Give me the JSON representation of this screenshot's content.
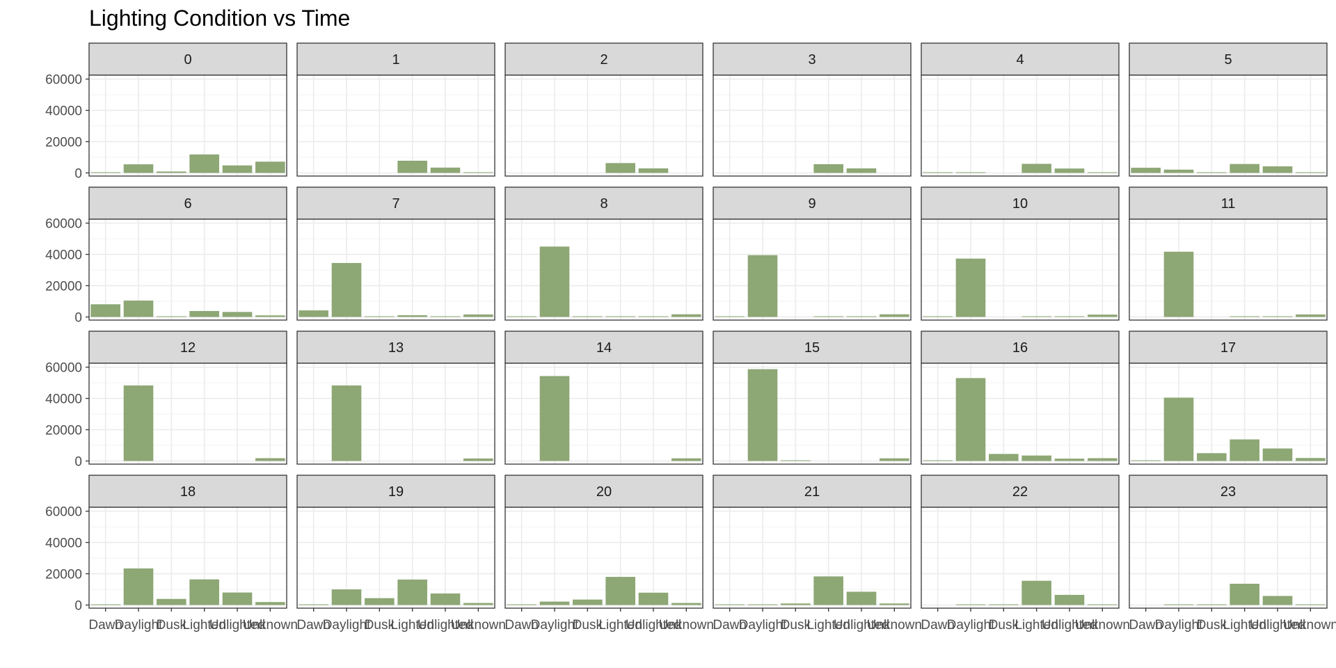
{
  "chart_data": {
    "type": "bar",
    "title": "Lighting Condition vs Time",
    "xlabel": "",
    "ylabel": "",
    "categories": [
      "Dawn",
      "Daylight",
      "Dusk",
      "Lighted",
      "Unlighted",
      "Unknown"
    ],
    "y_ticks": [
      "0",
      "20000",
      "40000",
      "60000"
    ],
    "ylim": [
      -2000,
      62500
    ],
    "grid": true,
    "bar_color": "#8da775",
    "facets": [
      {
        "label": "0",
        "values": [
          200,
          5500,
          900,
          11800,
          4800,
          7200
        ]
      },
      {
        "label": "1",
        "values": [
          0,
          0,
          0,
          7800,
          3400,
          300
        ]
      },
      {
        "label": "2",
        "values": [
          0,
          0,
          0,
          6300,
          2900,
          0
        ]
      },
      {
        "label": "3",
        "values": [
          0,
          0,
          0,
          5600,
          2900,
          0
        ]
      },
      {
        "label": "4",
        "values": [
          200,
          300,
          0,
          5800,
          2800,
          300
        ]
      },
      {
        "label": "5",
        "values": [
          3300,
          2100,
          400,
          5700,
          4200,
          400
        ]
      },
      {
        "label": "6",
        "values": [
          8100,
          10500,
          300,
          3800,
          3200,
          1000
        ]
      },
      {
        "label": "7",
        "values": [
          4200,
          34500,
          300,
          1100,
          400,
          1600
        ]
      },
      {
        "label": "8",
        "values": [
          200,
          45000,
          300,
          300,
          300,
          1700
        ]
      },
      {
        "label": "9",
        "values": [
          200,
          39500,
          0,
          300,
          300,
          1700
        ]
      },
      {
        "label": "10",
        "values": [
          200,
          37300,
          0,
          300,
          300,
          1500
        ]
      },
      {
        "label": "11",
        "values": [
          0,
          41700,
          0,
          300,
          300,
          1600
        ]
      },
      {
        "label": "12",
        "values": [
          0,
          48300,
          0,
          0,
          0,
          1800
        ]
      },
      {
        "label": "13",
        "values": [
          0,
          48300,
          0,
          0,
          0,
          1600
        ]
      },
      {
        "label": "14",
        "values": [
          0,
          54300,
          0,
          0,
          0,
          1700
        ]
      },
      {
        "label": "15",
        "values": [
          0,
          58700,
          300,
          0,
          0,
          1700
        ]
      },
      {
        "label": "16",
        "values": [
          400,
          53000,
          4500,
          3500,
          1500,
          1800
        ]
      },
      {
        "label": "17",
        "values": [
          400,
          40500,
          5000,
          13800,
          8000,
          1900
        ]
      },
      {
        "label": "18",
        "values": [
          400,
          23400,
          3900,
          16400,
          8000,
          1900
        ]
      },
      {
        "label": "19",
        "values": [
          400,
          10000,
          4400,
          16300,
          7400,
          1300
        ]
      },
      {
        "label": "20",
        "values": [
          400,
          2200,
          3500,
          18000,
          7900,
          1300
        ]
      },
      {
        "label": "21",
        "values": [
          300,
          400,
          1000,
          18300,
          8500,
          1000
        ]
      },
      {
        "label": "22",
        "values": [
          0,
          400,
          400,
          15500,
          6500,
          400
        ]
      },
      {
        "label": "23",
        "values": [
          0,
          400,
          400,
          13600,
          5800,
          400
        ]
      }
    ]
  }
}
